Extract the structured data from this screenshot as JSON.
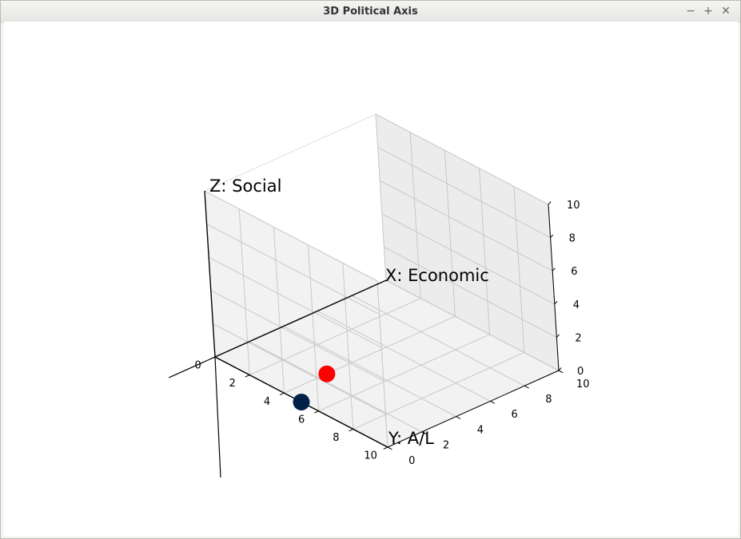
{
  "window": {
    "title": "3D Political Axis",
    "buttons": {
      "minimize": "−",
      "maximize": "+",
      "close": "✕"
    }
  },
  "chart_data": {
    "type": "scatter3d",
    "title": "",
    "axes": {
      "x": {
        "label": "X: Economic",
        "lim": [
          0,
          10
        ],
        "ticks": [
          "0",
          "2",
          "4",
          "6",
          "8",
          "10"
        ]
      },
      "y": {
        "label": "Y: A/L",
        "lim": [
          0,
          10
        ],
        "ticks": [
          "0",
          "2",
          "4",
          "6",
          "8",
          "10"
        ]
      },
      "z": {
        "label": "Z: Social",
        "lim": [
          0,
          10
        ],
        "ticks": [
          "0",
          "2",
          "4",
          "6",
          "8",
          "10"
        ]
      }
    },
    "grid": true,
    "reference_axes": true,
    "points": [
      {
        "x": 0,
        "y": 5,
        "z": 0,
        "color": "#002147"
      },
      {
        "x": 2.5,
        "y": 4,
        "z": 0,
        "color": "#ff0000"
      }
    ]
  }
}
